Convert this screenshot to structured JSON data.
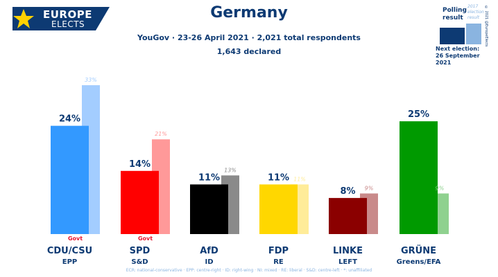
{
  "logo": {
    "line1": "EUROPE",
    "line2": "ELECTS"
  },
  "colors": {
    "brand_navy": "#0d3a73",
    "brand_light": "#8ab4e0"
  },
  "legend": {
    "polling": "Polling",
    "result": "result",
    "prev_line1": "2017",
    "prev_line2": "election",
    "prev_line3": "result",
    "next_line1": "Next election:",
    "next_line2": "26 September 2021",
    "copyright": "© 2021 @EuropeElects"
  },
  "chart_data": {
    "type": "bar",
    "title": "Germany",
    "subtitle": "YouGov · 23-26 April 2021 · 2,021 total respondents",
    "subtitle2": "1,643 declared",
    "ylim": [
      0,
      35
    ],
    "categories": [
      "CDU/CSU",
      "SPD",
      "AfD",
      "FDP",
      "LINKE",
      "GRÜNE"
    ],
    "groups": [
      "EPP",
      "S&D",
      "ID",
      "RE",
      "LEFT",
      "Greens/EFA"
    ],
    "govt_marks": [
      "Govt",
      "Govt",
      "",
      "",
      "",
      ""
    ],
    "series": [
      {
        "name": "Polling result",
        "values": [
          24,
          14,
          11,
          11,
          8,
          25
        ],
        "labels": [
          "24%",
          "14%",
          "11%",
          "11%",
          "8%",
          "25%"
        ]
      },
      {
        "name": "2017 election result",
        "values": [
          33,
          21,
          13,
          11,
          9,
          9
        ],
        "labels": [
          "33%",
          "21%",
          "13%",
          "11%",
          "9%",
          "9%"
        ]
      }
    ],
    "colors": [
      "#3399ff",
      "#ff0000",
      "#000000",
      "#ffd700",
      "#8b0000",
      "#009a00"
    ],
    "prev_colors": [
      "#a3cdff",
      "#ff9999",
      "#8a8a8a",
      "#ffec99",
      "#c98a8a",
      "#8fd18f"
    ],
    "footnote": "ECR: national-conservative · EPP: centre-right · ID: right-wing · NI: mixed · RE: liberal · S&D: centre-left · *: unaffiliated"
  }
}
